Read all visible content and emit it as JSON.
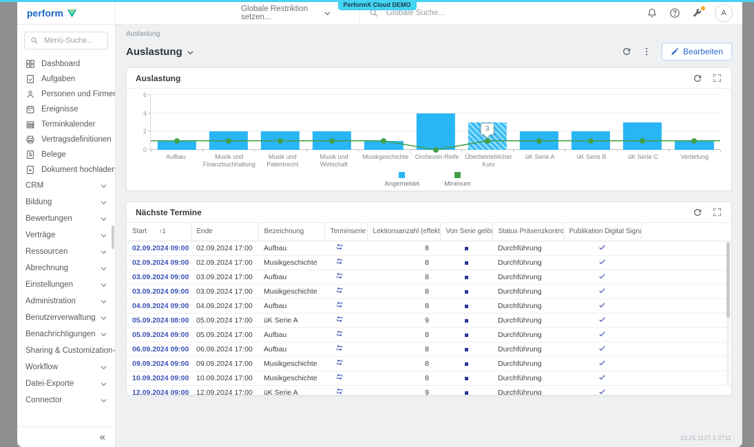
{
  "app": {
    "demo_badge": "PerformX Cloud DEMO",
    "version": "23.25.1127.1-2711"
  },
  "header": {
    "logo_text": "perform",
    "restriction_selector": "Globale Restriktion setzen...",
    "global_search_placeholder": "Globale Suche...",
    "avatar_initial": "A"
  },
  "sidebar": {
    "menu_search_placeholder": "Menü-Suche...",
    "items": [
      {
        "label": "Dashboard",
        "icon": "dashboard-icon"
      },
      {
        "label": "Aufgaben",
        "icon": "task-icon"
      },
      {
        "label": "Personen und Firmen",
        "icon": "person-icon"
      },
      {
        "label": "Ereignisse",
        "icon": "event-icon"
      },
      {
        "label": "Terminkalender",
        "icon": "calendar-icon"
      },
      {
        "label": "Vertragsdefinitionen",
        "icon": "contract-icon"
      },
      {
        "label": "Belege",
        "icon": "receipt-icon"
      },
      {
        "label": "Dokument hochladen",
        "icon": "upload-icon"
      }
    ],
    "sections": [
      "CRM",
      "Bildung",
      "Bewertungen",
      "Verträge",
      "Ressourcen",
      "Abrechnung",
      "Einstellungen",
      "Administration",
      "Benutzerverwaltung",
      "Benachrichtigungen",
      "Sharing & Customization",
      "Workflow",
      "Datei-Exporte",
      "Connector"
    ],
    "collapse_glyph": "«"
  },
  "page": {
    "breadcrumb": "Auslastung",
    "title": "Auslastung",
    "edit_button": "Bearbeiten"
  },
  "chart_card": {
    "title": "Auslastung"
  },
  "chart_data": {
    "type": "bar",
    "categories": [
      "Aufbau",
      "Musik und Finanzbuchhaltung",
      "Musik und Patentrecht",
      "Musik und Wirtschaft",
      "Musikgeschichte",
      "Orchester-Reife",
      "Überbetrieblicher Kurs",
      "üK Serie A",
      "üK Serie B",
      "üK Serie C",
      "Vertiefung"
    ],
    "series": [
      {
        "name": "Angemeldet",
        "type": "bar",
        "color": "#29b6f6",
        "values": [
          1,
          2,
          2,
          2,
          1,
          4,
          3,
          2,
          2,
          3,
          1
        ]
      },
      {
        "name": "Minimum",
        "type": "line",
        "color": "#43a047",
        "values": [
          1,
          1,
          1,
          1,
          1,
          0,
          1,
          1,
          1,
          1,
          1
        ]
      }
    ],
    "ylim": [
      0,
      6
    ],
    "yticks": [
      0,
      2,
      4,
      6
    ],
    "grid": true,
    "legend_position": "bottom",
    "highlighted_category_index": 6,
    "tooltip": {
      "category_index": 6,
      "text": "3"
    }
  },
  "table_card": {
    "title": "Nächste Termine",
    "columns": [
      "Start",
      "Ende",
      "Bezeichnung",
      "Terminserie",
      "Lektionsanzahl (effektiv)",
      "Von Serie gelöst",
      "Status Präsenzkontrolle",
      "Publikation Digital Signage"
    ],
    "sort": {
      "column": "Start",
      "indicator": "↑1"
    },
    "rows": [
      {
        "start": "02.09.2024 09:00",
        "ende": "02.09.2024 17:00",
        "bezeichnung": "Aufbau",
        "terminserie": true,
        "lektionsanzahl": 8,
        "von_serie_geloest": false,
        "status": "Durchführung",
        "publikation": true
      },
      {
        "start": "02.09.2024 09:00",
        "ende": "02.09.2024 17:00",
        "bezeichnung": "Musikgeschichte",
        "terminserie": true,
        "lektionsanzahl": 8,
        "von_serie_geloest": false,
        "status": "Durchführung",
        "publikation": true
      },
      {
        "start": "03.09.2024 09:00",
        "ende": "03.09.2024 17:00",
        "bezeichnung": "Aufbau",
        "terminserie": true,
        "lektionsanzahl": 8,
        "von_serie_geloest": false,
        "status": "Durchführung",
        "publikation": true
      },
      {
        "start": "03.09.2024 09:00",
        "ende": "03.09.2024 17:00",
        "bezeichnung": "Musikgeschichte",
        "terminserie": true,
        "lektionsanzahl": 8,
        "von_serie_geloest": false,
        "status": "Durchführung",
        "publikation": true
      },
      {
        "start": "04.09.2024 09:00",
        "ende": "04.09.2024 17:00",
        "bezeichnung": "Aufbau",
        "terminserie": true,
        "lektionsanzahl": 8,
        "von_serie_geloest": false,
        "status": "Durchführung",
        "publikation": true
      },
      {
        "start": "05.09.2024 08:00",
        "ende": "05.09.2024 17:00",
        "bezeichnung": "üK Serie A",
        "terminserie": true,
        "lektionsanzahl": 9,
        "von_serie_geloest": false,
        "status": "Durchführung",
        "publikation": true
      },
      {
        "start": "05.09.2024 09:00",
        "ende": "05.09.2024 17:00",
        "bezeichnung": "Aufbau",
        "terminserie": true,
        "lektionsanzahl": 8,
        "von_serie_geloest": false,
        "status": "Durchführung",
        "publikation": true
      },
      {
        "start": "06.09.2024 09:00",
        "ende": "06.09.2024 17:00",
        "bezeichnung": "Aufbau",
        "terminserie": true,
        "lektionsanzahl": 8,
        "von_serie_geloest": false,
        "status": "Durchführung",
        "publikation": true
      },
      {
        "start": "09.09.2024 09:00",
        "ende": "09.09.2024 17:00",
        "bezeichnung": "Musikgeschichte",
        "terminserie": true,
        "lektionsanzahl": 8,
        "von_serie_geloest": false,
        "status": "Durchführung",
        "publikation": true
      },
      {
        "start": "10.09.2024 09:00",
        "ende": "10.09.2024 17:00",
        "bezeichnung": "Musikgeschichte",
        "terminserie": true,
        "lektionsanzahl": 8,
        "von_serie_geloest": false,
        "status": "Durchführung",
        "publikation": true
      },
      {
        "start": "12.09.2024 09:00",
        "ende": "12.09.2024 17:00",
        "bezeichnung": "üK Serie A",
        "terminserie": true,
        "lektionsanzahl": 9,
        "von_serie_geloest": false,
        "status": "Durchführung",
        "publikation": true
      }
    ]
  }
}
